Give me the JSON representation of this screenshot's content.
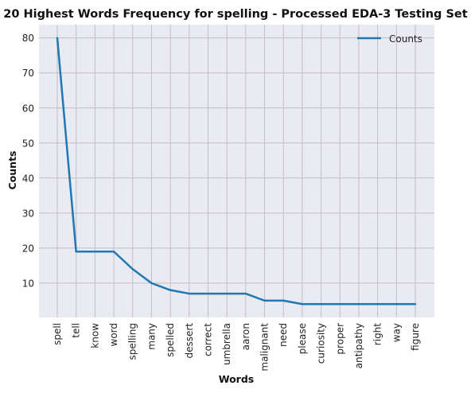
{
  "chart_data": {
    "type": "line",
    "title": "20 Highest Words Frequency for spelling - Processed EDA-3 Testing Set",
    "xlabel": "Words",
    "ylabel": "Counts",
    "categories": [
      "spell",
      "tell",
      "know",
      "word",
      "spelling",
      "many",
      "spelled",
      "dessert",
      "correct",
      "umbrella",
      "aaron",
      "malignant",
      "need",
      "please",
      "curiosity",
      "proper",
      "antipathy",
      "right",
      "way",
      "figure"
    ],
    "series": [
      {
        "name": "Counts",
        "color": "#1f77b4",
        "values": [
          80,
          19,
          19,
          19,
          14,
          10,
          8,
          7,
          7,
          7,
          7,
          5,
          5,
          4,
          4,
          4,
          4,
          4,
          4,
          4
        ]
      }
    ],
    "yticks": [
      10,
      20,
      30,
      40,
      50,
      60,
      70,
      80
    ],
    "ylim": [
      0.2,
      83.8
    ],
    "grid": true,
    "legend": "top-right",
    "background": "#eaeaf2",
    "grid_color": "#c0c0c0"
  }
}
